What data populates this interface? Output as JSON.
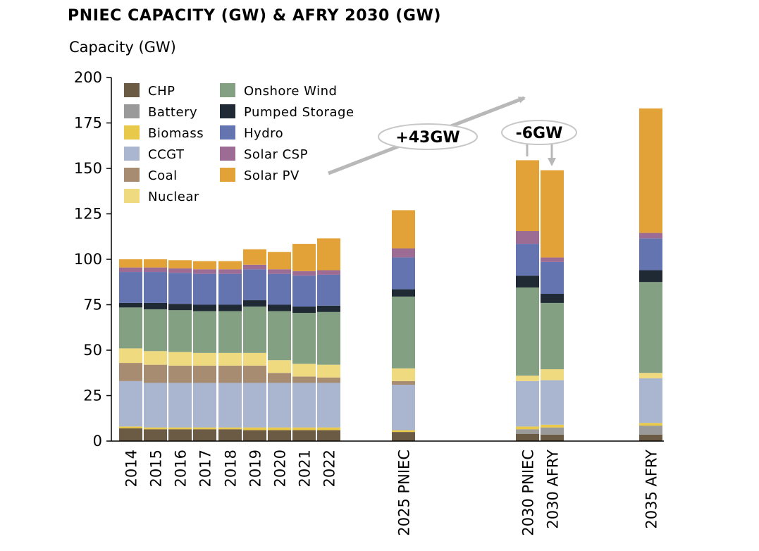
{
  "chart_data": {
    "type": "bar",
    "stacked": true,
    "title": "PNIEC CAPACITY (GW) & AFRY 2030 (GW)",
    "ylabel": "Capacity (GW)",
    "xlabel": "",
    "ylim": [
      0,
      200
    ],
    "yticks": [
      0,
      25,
      50,
      75,
      100,
      125,
      150,
      175,
      200
    ],
    "grid": false,
    "legend_position": "top-left",
    "categories": [
      "2014",
      "2015",
      "2016",
      "2017",
      "2018",
      "2019",
      "2020",
      "2021",
      "2022",
      "2025 PNIEC",
      "2030 PNIEC",
      "2030 AFRY",
      "2035 AFRY"
    ],
    "series": [
      {
        "name": "CHP",
        "color": "#6b5a44",
        "values": [
          7,
          6.5,
          6.5,
          6.5,
          6.5,
          6,
          6,
          6,
          6,
          5,
          4,
          3.5,
          3.5
        ]
      },
      {
        "name": "Battery",
        "color": "#9a9a9a",
        "values": [
          0,
          0,
          0,
          0,
          0,
          0,
          0,
          0,
          0,
          0,
          2.5,
          4,
          5
        ]
      },
      {
        "name": "Biomass",
        "color": "#e8c94a",
        "values": [
          1,
          1,
          1,
          1,
          1,
          1.5,
          1.5,
          1.5,
          1.5,
          1,
          1.5,
          1.5,
          1.5
        ]
      },
      {
        "name": "CCGT",
        "color": "#aab6d0",
        "values": [
          25,
          24.5,
          24.5,
          24.5,
          24.5,
          24.5,
          24.5,
          24.5,
          24.5,
          25,
          25,
          24.5,
          24.5
        ]
      },
      {
        "name": "Coal",
        "color": "#a88c72",
        "values": [
          10,
          10,
          9.5,
          9.5,
          9.5,
          9.5,
          5.5,
          3.5,
          3,
          2,
          0,
          0,
          0
        ]
      },
      {
        "name": "Nuclear",
        "color": "#f0da80",
        "values": [
          8,
          7.5,
          7.5,
          7,
          7,
          7,
          7,
          7,
          7,
          7,
          3,
          6,
          3
        ]
      },
      {
        "name": "Onshore Wind",
        "color": "#83a082",
        "values": [
          22.5,
          23,
          23,
          23,
          23,
          25.5,
          27,
          28,
          29,
          39.5,
          48.5,
          36.5,
          50
        ]
      },
      {
        "name": "Pumped Storage",
        "color": "#1f2a35",
        "values": [
          2.5,
          3.5,
          3.5,
          3.5,
          3.5,
          3.5,
          3.5,
          3.5,
          3.5,
          4,
          6.5,
          5,
          6.5
        ]
      },
      {
        "name": "Hydro",
        "color": "#6474b0",
        "values": [
          17,
          17,
          17,
          17,
          17,
          17,
          17,
          17,
          17,
          17.5,
          17.5,
          17.5,
          17.5
        ]
      },
      {
        "name": "Solar CSP",
        "color": "#9c6c94",
        "values": [
          2.5,
          2.5,
          2.5,
          2.5,
          2.5,
          2.5,
          2.5,
          2.5,
          2.5,
          5,
          7,
          2.5,
          3
        ]
      },
      {
        "name": "Solar PV",
        "color": "#e2a238",
        "values": [
          4.5,
          4.5,
          4.5,
          4.5,
          4.5,
          8.5,
          9.5,
          15,
          17.5,
          21,
          39,
          48,
          68.5
        ]
      }
    ],
    "annotations": [
      {
        "text": "+43GW",
        "type": "callout"
      },
      {
        "text": "-6GW",
        "type": "callout"
      }
    ]
  }
}
